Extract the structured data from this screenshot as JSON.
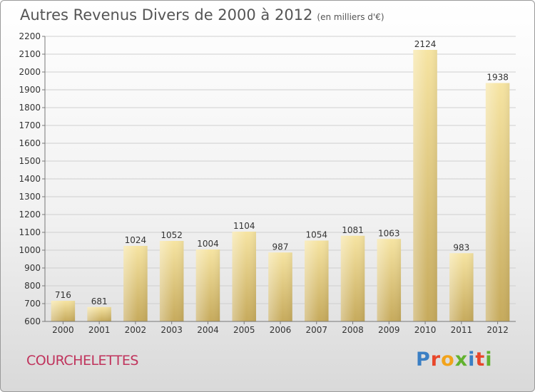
{
  "header": {
    "title": "Autres Revenus Divers de 2000 à 2012",
    "unit": "(en milliers d'€)"
  },
  "footer": {
    "commune": "COURCHELETTES",
    "logo_text": "Proxiti"
  },
  "colors": {
    "bar_light": "#f5e3a0",
    "bar_dark": "#c9ad5e",
    "commune": "#c0335c"
  },
  "chart_data": {
    "type": "bar",
    "title": "Autres Revenus Divers de 2000 à 2012",
    "subtitle": "(en milliers d'€)",
    "categories": [
      "2000",
      "2001",
      "2002",
      "2003",
      "2004",
      "2005",
      "2006",
      "2007",
      "2008",
      "2009",
      "2010",
      "2011",
      "2012"
    ],
    "values": [
      716,
      681,
      1024,
      1052,
      1004,
      1104,
      987,
      1054,
      1081,
      1063,
      2124,
      983,
      1938
    ],
    "ylim": [
      600,
      2200
    ],
    "yticks": [
      600,
      700,
      800,
      900,
      1000,
      1100,
      1200,
      1300,
      1400,
      1500,
      1600,
      1700,
      1800,
      1900,
      2000,
      2100,
      2200
    ],
    "grid": true,
    "data_labels": true
  }
}
